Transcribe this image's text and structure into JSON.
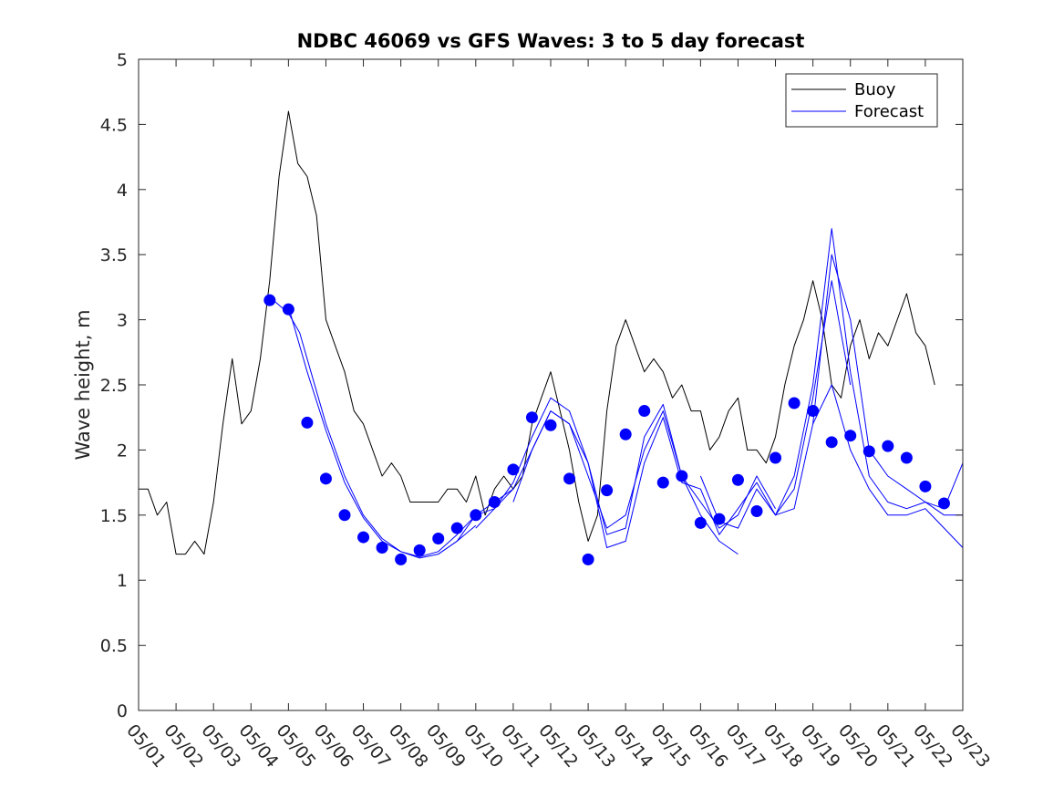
{
  "chart_data": {
    "type": "line",
    "title": "NDBC 46069 vs GFS Waves: 3 to 5 day forecast",
    "xlabel": "",
    "ylabel": "Wave height, m",
    "xlim": [
      0,
      22
    ],
    "ylim": [
      0,
      5
    ],
    "yticks": [
      0,
      0.5,
      1,
      1.5,
      2,
      2.5,
      3,
      3.5,
      4,
      4.5,
      5
    ],
    "ytick_labels": [
      "0",
      "0.5",
      "1",
      "1.5",
      "2",
      "2.5",
      "3",
      "3.5",
      "4",
      "4.5",
      "5"
    ],
    "x_unit": "days since 05/01 00:00",
    "xticks": [
      0,
      1,
      2,
      3,
      4,
      5,
      6,
      7,
      8,
      9,
      10,
      11,
      12,
      13,
      14,
      15,
      16,
      17,
      18,
      19,
      20,
      21,
      22
    ],
    "xtick_labels": [
      "05/01",
      "05/02",
      "05/03",
      "05/04",
      "05/05",
      "05/06",
      "05/07",
      "05/08",
      "05/09",
      "05/10",
      "05/11",
      "05/12",
      "05/13",
      "05/14",
      "05/15",
      "05/16",
      "05/17",
      "05/18",
      "05/19",
      "05/20",
      "05/21",
      "05/22",
      "05/23"
    ],
    "legend": {
      "placement": "top-right",
      "entries": [
        {
          "label": "Buoy",
          "color": "#000000"
        },
        {
          "label": "Forecast",
          "color": "#0000ff"
        }
      ]
    },
    "series": [
      {
        "name": "Buoy",
        "color": "#000000",
        "style": "line",
        "x": [
          0,
          0.25,
          0.5,
          0.75,
          1,
          1.25,
          1.5,
          1.75,
          2,
          2.25,
          2.5,
          2.75,
          3,
          3.25,
          3.5,
          3.75,
          4,
          4.25,
          4.5,
          4.75,
          5,
          5.25,
          5.5,
          5.75,
          6,
          6.25,
          6.5,
          6.75,
          7,
          7.25,
          7.5,
          7.75,
          8,
          8.25,
          8.5,
          8.75,
          9,
          9.25,
          9.5,
          9.75,
          10,
          10.25,
          10.5,
          10.75,
          11,
          11.25,
          11.5,
          11.75,
          12,
          12.25,
          12.5,
          12.75,
          13,
          13.25,
          13.5,
          13.75,
          14,
          14.25,
          14.5,
          14.75,
          15,
          15.25,
          15.5,
          15.75,
          16,
          16.25,
          16.5,
          16.75,
          17,
          17.25,
          17.5,
          17.75,
          18,
          18.25,
          18.5,
          18.75,
          19,
          19.25,
          19.5,
          19.75,
          20,
          20.25,
          20.5,
          20.75,
          21,
          21.25
        ],
        "values": [
          1.7,
          1.7,
          1.5,
          1.6,
          1.2,
          1.2,
          1.3,
          1.2,
          1.6,
          2.2,
          2.7,
          2.2,
          2.3,
          2.7,
          3.3,
          4.1,
          4.6,
          4.2,
          4.1,
          3.8,
          3.0,
          2.8,
          2.6,
          2.3,
          2.2,
          2.0,
          1.8,
          1.9,
          1.8,
          1.6,
          1.6,
          1.6,
          1.6,
          1.7,
          1.7,
          1.6,
          1.8,
          1.5,
          1.7,
          1.8,
          1.7,
          1.8,
          2.2,
          2.4,
          2.6,
          2.3,
          2.0,
          1.6,
          1.3,
          1.5,
          2.3,
          2.8,
          3.0,
          2.8,
          2.6,
          2.7,
          2.6,
          2.4,
          2.5,
          2.3,
          2.3,
          2.0,
          2.1,
          2.3,
          2.4,
          2.0,
          2.0,
          1.9,
          2.1,
          2.5,
          2.8,
          3.0,
          3.3,
          3.0,
          2.5,
          2.4,
          2.8,
          3.0,
          2.7,
          2.9,
          2.8,
          3.0,
          3.2,
          2.9,
          2.8,
          2.5
        ]
      },
      {
        "name": "Forecast",
        "color": "#0000ff",
        "style": "line",
        "x": [
          3.6,
          4.0,
          4.3,
          4.6,
          5.0,
          5.5,
          6.0,
          6.5,
          7.0,
          7.5,
          8.0,
          8.5,
          9.0
        ],
        "values": [
          3.15,
          3.05,
          2.9,
          2.6,
          2.2,
          1.8,
          1.5,
          1.32,
          1.22,
          1.17,
          1.2,
          1.3,
          1.42
        ]
      },
      {
        "name": "Forecast",
        "color": "#0000ff",
        "style": "line",
        "x": [
          4.0,
          4.5,
          5.0,
          5.5,
          6.0,
          6.5,
          7.0,
          7.5,
          8.0,
          8.5,
          9.0,
          9.5,
          10.0
        ],
        "values": [
          3.1,
          2.6,
          2.15,
          1.75,
          1.48,
          1.3,
          1.22,
          1.18,
          1.22,
          1.35,
          1.5,
          1.6,
          1.7
        ]
      },
      {
        "name": "Forecast",
        "color": "#0000ff",
        "style": "line",
        "x": [
          8.0,
          8.5,
          9.0,
          9.5,
          10.0,
          10.5,
          11.0,
          11.5,
          12.0,
          12.5,
          13.0,
          13.5,
          14.0,
          14.5,
          15.0,
          15.5,
          16.0,
          16.5,
          17.0
        ],
        "values": [
          1.2,
          1.3,
          1.5,
          1.55,
          1.7,
          2.0,
          2.3,
          2.2,
          1.8,
          1.4,
          1.5,
          2.0,
          2.3,
          1.8,
          1.6,
          1.4,
          1.5,
          1.8,
          1.55
        ]
      },
      {
        "name": "Forecast",
        "color": "#0000ff",
        "style": "line",
        "x": [
          9.0,
          9.5,
          10.0,
          10.5,
          11.0,
          11.5,
          12.0,
          12.5,
          13.0,
          13.5,
          14.0,
          14.5,
          15.0,
          15.5,
          16.0
        ],
        "values": [
          1.4,
          1.55,
          1.75,
          2.1,
          2.4,
          2.3,
          1.9,
          1.35,
          1.4,
          2.1,
          2.35,
          1.8,
          1.5,
          1.3,
          1.2
        ]
      },
      {
        "name": "Forecast",
        "color": "#0000ff",
        "style": "line",
        "x": [
          10.0,
          10.5,
          11.0,
          11.5,
          12.0,
          12.5,
          13.0,
          13.5,
          14.0,
          14.5,
          15.0,
          15.5,
          16.0,
          16.5,
          17.0,
          17.5,
          18.0,
          18.5,
          19.0
        ],
        "values": [
          1.6,
          2.0,
          2.3,
          2.2,
          1.9,
          1.25,
          1.3,
          1.9,
          2.25,
          1.75,
          1.7,
          1.35,
          1.55,
          1.75,
          1.5,
          1.7,
          2.4,
          3.3,
          2.5
        ]
      },
      {
        "name": "Forecast",
        "color": "#0000ff",
        "style": "line",
        "x": [
          15.0,
          15.5,
          16.0,
          16.5,
          17.0,
          17.5,
          18.0,
          18.5,
          19.0,
          19.5,
          20.0,
          20.5,
          21.0,
          21.5,
          22.0
        ],
        "values": [
          1.8,
          1.45,
          1.4,
          1.7,
          1.5,
          1.55,
          2.2,
          3.5,
          3.0,
          2.0,
          1.8,
          1.7,
          1.6,
          1.55,
          1.9
        ]
      },
      {
        "name": "Forecast",
        "color": "#0000ff",
        "style": "line",
        "x": [
          17.0,
          17.5,
          18.0,
          18.5,
          19.0,
          19.5,
          20.0,
          20.5,
          21.0,
          21.5,
          22.0
        ],
        "values": [
          1.5,
          1.8,
          2.5,
          3.7,
          2.6,
          1.8,
          1.6,
          1.55,
          1.6,
          1.5,
          1.5
        ]
      },
      {
        "name": "Forecast",
        "color": "#0000ff",
        "style": "line",
        "x": [
          18.0,
          18.5,
          19.0,
          19.5,
          20.0,
          20.5,
          21.0,
          21.5,
          22.0
        ],
        "values": [
          2.2,
          2.5,
          2.0,
          1.7,
          1.5,
          1.5,
          1.55,
          1.4,
          1.25
        ]
      },
      {
        "name": "Forecast",
        "color": "#0000ff",
        "style": "markers",
        "x": [
          3.5,
          4.0,
          4.5,
          5.0,
          5.5,
          6.0,
          6.5,
          7.0,
          7.5,
          8.0,
          8.5,
          9.0,
          9.5,
          10.0,
          10.5,
          11.0,
          11.5,
          12.0,
          12.5,
          13.0,
          13.5,
          14.0,
          14.5,
          15.0,
          15.5,
          16.0,
          16.5,
          17.0,
          17.5,
          18.0,
          18.5,
          19.0,
          19.5,
          20.0,
          20.5,
          21.0,
          21.5
        ],
        "values": [
          3.15,
          3.08,
          2.21,
          1.78,
          1.5,
          1.33,
          1.25,
          1.16,
          1.23,
          1.32,
          1.4,
          1.5,
          1.6,
          1.85,
          2.25,
          2.19,
          1.78,
          1.16,
          1.69,
          2.12,
          2.3,
          1.75,
          1.8,
          1.44,
          1.47,
          1.77,
          1.53,
          1.94,
          2.36,
          2.3,
          2.06,
          2.11,
          1.99,
          2.03,
          1.94,
          1.72,
          1.59
        ]
      }
    ]
  }
}
